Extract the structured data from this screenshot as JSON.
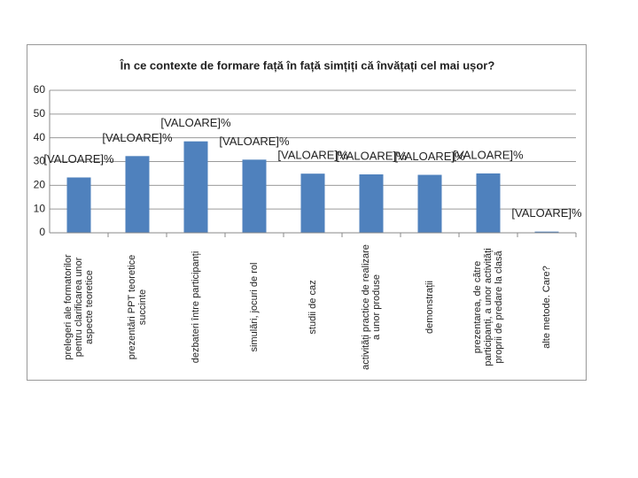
{
  "chart_data": {
    "type": "bar",
    "title": "În ce contexte de formare față în față simțiți că învățați cel mai ușor?",
    "categories": [
      "prelegeri ale formatorilor pentru clarificarea unor aspecte teoretice",
      "prezentări PPT teoretice succinte",
      "dezbateri între participanți",
      "simulări, jocuri de rol",
      "studii de caz",
      "activități practice de realizare a unor produse",
      "demonstrații",
      "prezentarea, de către participanți, a unor activități proprii de predare la clasă",
      "alte metode. Care?"
    ],
    "values": [
      23.3,
      32.3,
      38.5,
      30.8,
      24.9,
      24.6,
      24.4,
      25,
      0.5
    ],
    "value_labels": [
      "[VALOARE]%",
      "[VALOARE]%",
      "[VALOARE]%",
      "[VALOARE]%",
      "[VALOARE]%",
      "[VALOARE]%",
      "[VALOARE]%",
      "[VALOARE]%",
      "[VALOARE]%"
    ],
    "color": "#4f81bd",
    "ylim": [
      0,
      60
    ],
    "yticks": [
      0,
      10,
      20,
      30,
      40,
      50,
      60
    ],
    "grid": true
  }
}
